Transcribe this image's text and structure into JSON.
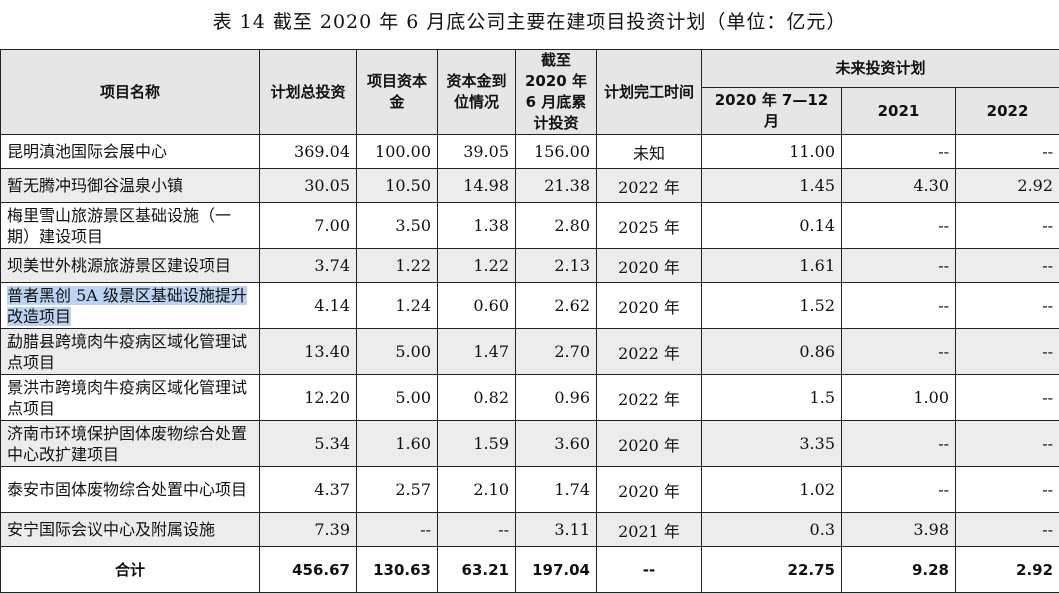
{
  "caption": "表 14 截至 2020 年 6 月底公司主要在建项目投资计划（单位：亿元）",
  "headers": {
    "name": "项目名称",
    "total": "计划总投资",
    "capital": "项目资本金",
    "capital_in_place": "资本金到位情况",
    "cumulative": "截至 2020 年 6 月底累计投资",
    "completion": "计划完工时间",
    "future": "未来投资计划",
    "y2020": "2020 年 7—12 月",
    "y2021": "2021",
    "y2022": "2022"
  },
  "rows": [
    {
      "name": "昆明滇池国际会展中心",
      "total": "369.04",
      "capital": "100.00",
      "in_place": "39.05",
      "cumulative": "156.00",
      "completion": "未知",
      "y2020": "11.00",
      "y2021": "--",
      "y2022": "--"
    },
    {
      "name": "暂无腾冲玛御谷温泉小镇",
      "total": "30.05",
      "capital": "10.50",
      "in_place": "14.98",
      "cumulative": "21.38",
      "completion": "2022 年",
      "y2020": "1.45",
      "y2021": "4.30",
      "y2022": "2.92"
    },
    {
      "name": "梅里雪山旅游景区基础设施（一期）建设项目",
      "total": "7.00",
      "capital": "3.50",
      "in_place": "1.38",
      "cumulative": "2.80",
      "completion": "2025 年",
      "y2020": "0.14",
      "y2021": "--",
      "y2022": "--"
    },
    {
      "name": "坝美世外桃源旅游景区建设项目",
      "total": "3.74",
      "capital": "1.22",
      "in_place": "1.22",
      "cumulative": "2.13",
      "completion": "2020 年",
      "y2020": "1.61",
      "y2021": "--",
      "y2022": "--"
    },
    {
      "name": "普者黑创 5A 级景区基础设施提升改造项目",
      "total": "4.14",
      "capital": "1.24",
      "in_place": "0.60",
      "cumulative": "2.62",
      "completion": "2020 年",
      "y2020": "1.52",
      "y2021": "--",
      "y2022": "--"
    },
    {
      "name": "勐腊县跨境肉牛疫病区域化管理试点项目",
      "total": "13.40",
      "capital": "5.00",
      "in_place": "1.47",
      "cumulative": "2.70",
      "completion": "2022 年",
      "y2020": "0.86",
      "y2021": "--",
      "y2022": "--"
    },
    {
      "name": "景洪市跨境肉牛疫病区域化管理试点项目",
      "total": "12.20",
      "capital": "5.00",
      "in_place": "0.82",
      "cumulative": "0.96",
      "completion": "2022 年",
      "y2020": "1.5",
      "y2021": "1.00",
      "y2022": "--"
    },
    {
      "name": "济南市环境保护固体废物综合处置中心改扩建项目",
      "total": "5.34",
      "capital": "1.60",
      "in_place": "1.59",
      "cumulative": "3.60",
      "completion": "2020 年",
      "y2020": "3.35",
      "y2021": "--",
      "y2022": "--"
    },
    {
      "name": "泰安市固体废物综合处置中心项目",
      "total": "4.37",
      "capital": "2.57",
      "in_place": "2.10",
      "cumulative": "1.74",
      "completion": "2020 年",
      "y2020": "1.02",
      "y2021": "--",
      "y2022": "--"
    },
    {
      "name": "安宁国际会议中心及附属设施",
      "total": "7.39",
      "capital": "--",
      "in_place": "--",
      "cumulative": "3.11",
      "completion": "2021 年",
      "y2020": "0.3",
      "y2021": "3.98",
      "y2022": "--"
    }
  ],
  "total_row": {
    "name": "合计",
    "total": "456.67",
    "capital": "130.63",
    "in_place": "63.21",
    "cumulative": "197.04",
    "completion": "--",
    "y2020": "22.75",
    "y2021": "9.28",
    "y2022": "2.92"
  }
}
